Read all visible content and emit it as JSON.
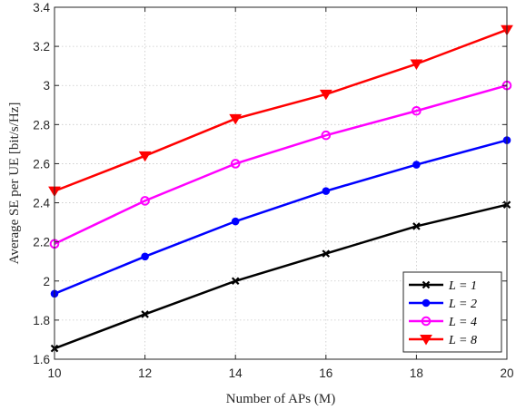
{
  "chart_data": {
    "type": "line",
    "xlabel": "Number of APs (M)",
    "ylabel": "Average SE per UE [bit/s/Hz]",
    "x": [
      10,
      12,
      14,
      16,
      18,
      20
    ],
    "xlim": [
      10,
      20
    ],
    "ylim": [
      1.6,
      3.4
    ],
    "xticks": [
      "10",
      "12",
      "14",
      "16",
      "18",
      "20"
    ],
    "yticks": [
      "1.6",
      "1.8",
      "2",
      "2.2",
      "2.4",
      "2.6",
      "2.8",
      "3",
      "3.2",
      "3.4"
    ],
    "grid": true,
    "legend_position": "bottom-right",
    "series": [
      {
        "name": "L = 1",
        "color": "#000000",
        "marker": "x",
        "values": [
          1.655,
          1.83,
          2.0,
          2.14,
          2.28,
          2.39
        ]
      },
      {
        "name": "L = 2",
        "color": "#0000ff",
        "marker": "filled-circle",
        "values": [
          1.935,
          2.125,
          2.305,
          2.46,
          2.595,
          2.72
        ]
      },
      {
        "name": "L = 4",
        "color": "#ff00ff",
        "marker": "open-circle",
        "values": [
          2.19,
          2.41,
          2.6,
          2.745,
          2.87,
          3.0
        ]
      },
      {
        "name": "L = 8",
        "color": "#ff0000",
        "marker": "triangle-down",
        "values": [
          2.46,
          2.64,
          2.83,
          2.955,
          3.11,
          3.285
        ]
      }
    ]
  }
}
